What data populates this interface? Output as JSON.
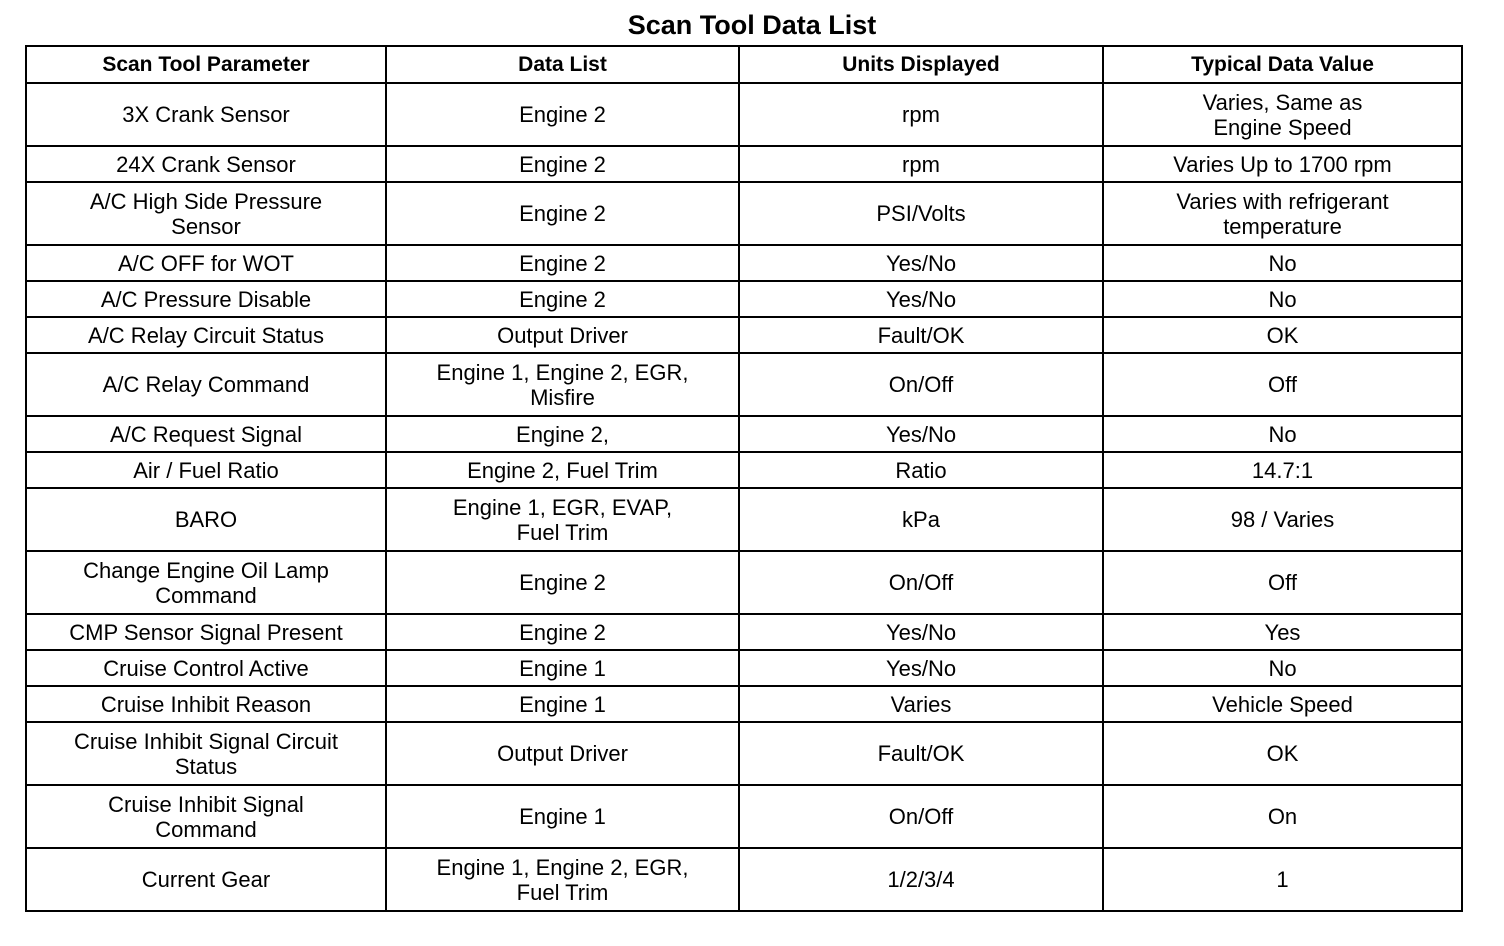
{
  "title": "Scan Tool Data List",
  "columns": [
    "Scan Tool Parameter",
    "Data List",
    "Units Displayed",
    "Typical Data Value"
  ],
  "rows": [
    [
      "3X Crank Sensor",
      "Engine 2",
      "rpm",
      "Varies, Same as\nEngine Speed"
    ],
    [
      "24X Crank Sensor",
      "Engine 2",
      "rpm",
      "Varies Up to 1700 rpm"
    ],
    [
      "A/C High Side Pressure\nSensor",
      "Engine 2",
      "PSI/Volts",
      "Varies with refrigerant\ntemperature"
    ],
    [
      "A/C OFF for WOT",
      "Engine 2",
      "Yes/No",
      "No"
    ],
    [
      "A/C Pressure Disable",
      "Engine 2",
      "Yes/No",
      "No"
    ],
    [
      "A/C Relay Circuit Status",
      "Output Driver",
      "Fault/OK",
      "OK"
    ],
    [
      "A/C Relay Command",
      "Engine 1, Engine 2, EGR,\nMisfire",
      "On/Off",
      "Off"
    ],
    [
      "A/C Request Signal",
      "Engine 2,",
      "Yes/No",
      "No"
    ],
    [
      "Air / Fuel Ratio",
      "Engine 2, Fuel Trim",
      "Ratio",
      "14.7:1"
    ],
    [
      "BARO",
      "Engine 1, EGR, EVAP,\nFuel Trim",
      "kPa",
      "98 / Varies"
    ],
    [
      "Change Engine Oil Lamp\nCommand",
      "Engine 2",
      "On/Off",
      "Off"
    ],
    [
      "CMP Sensor Signal Present",
      "Engine 2",
      "Yes/No",
      "Yes"
    ],
    [
      "Cruise Control Active",
      "Engine 1",
      "Yes/No",
      "No"
    ],
    [
      "Cruise Inhibit Reason",
      "Engine 1",
      "Varies",
      "Vehicle Speed"
    ],
    [
      "Cruise Inhibit Signal Circuit\nStatus",
      "Output Driver",
      "Fault/OK",
      "OK"
    ],
    [
      "Cruise Inhibit Signal\nCommand",
      "Engine 1",
      "On/Off",
      "On"
    ],
    [
      "Current Gear",
      "Engine 1, Engine 2, EGR,\nFuel Trim",
      "1/2/3/4",
      "1"
    ]
  ]
}
